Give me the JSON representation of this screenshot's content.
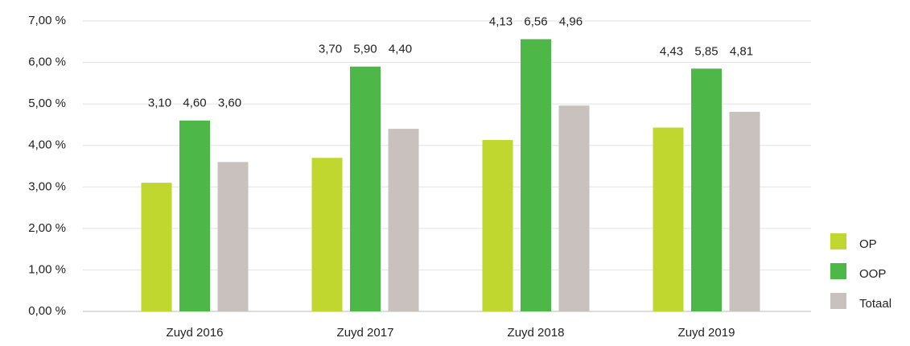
{
  "chart_data": {
    "type": "bar",
    "categories": [
      "Zuyd 2016",
      "Zuyd 2017",
      "Zuyd 2018",
      "Zuyd 2019"
    ],
    "series": [
      {
        "name": "OP",
        "color": "#c0d72f",
        "values": [
          3.1,
          3.7,
          4.13,
          4.43
        ],
        "value_labels": [
          "3,10",
          "3,70",
          "4,13",
          "4,43"
        ]
      },
      {
        "name": "OOP",
        "color": "#4db848",
        "values": [
          4.6,
          5.9,
          6.56,
          5.85
        ],
        "value_labels": [
          "4,60",
          "5,90",
          "6,56",
          "5,85"
        ]
      },
      {
        "name": "Totaal",
        "color": "#c9c1bd",
        "values": [
          3.6,
          4.4,
          4.96,
          4.81
        ],
        "value_labels": [
          "3,60",
          "4,40",
          "4,96",
          "4,81"
        ]
      }
    ],
    "ylim": [
      0,
      7
    ],
    "yticks": [
      {
        "value": 0,
        "label": "0,00 %"
      },
      {
        "value": 1,
        "label": "1,00 %"
      },
      {
        "value": 2,
        "label": "2,00 %"
      },
      {
        "value": 3,
        "label": "3,00 %"
      },
      {
        "value": 4,
        "label": "4,00 %"
      },
      {
        "value": 5,
        "label": "5,00 %"
      },
      {
        "value": 6,
        "label": "6,00 %"
      },
      {
        "value": 7,
        "label": "7,00 %"
      }
    ],
    "grid": true,
    "legend": "right"
  }
}
